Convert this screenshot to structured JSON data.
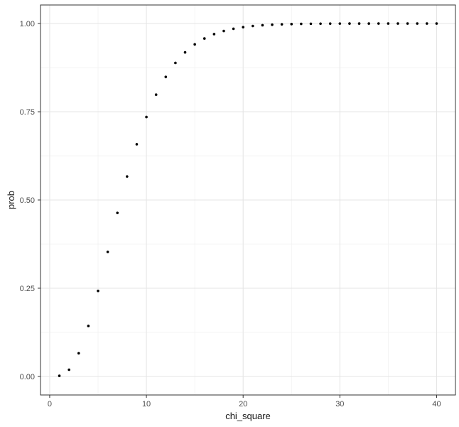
{
  "chart_data": {
    "type": "scatter",
    "title": "",
    "xlabel": "chi_square",
    "ylabel": "prob",
    "x": [
      1,
      2,
      3,
      4,
      5,
      6,
      7,
      8,
      9,
      10,
      11,
      12,
      13,
      14,
      15,
      16,
      17,
      18,
      19,
      20,
      21,
      22,
      23,
      24,
      25,
      26,
      27,
      28,
      29,
      30,
      31,
      32,
      33,
      34,
      35,
      36,
      37,
      38,
      39,
      40
    ],
    "y": [
      0.0018,
      0.019,
      0.0656,
      0.1429,
      0.2424,
      0.3528,
      0.4634,
      0.5665,
      0.6577,
      0.735,
      0.7983,
      0.8488,
      0.8882,
      0.9182,
      0.9409,
      0.9576,
      0.9699,
      0.9788,
      0.9851,
      0.9897,
      0.9929,
      0.9951,
      0.9966,
      0.9977,
      0.9984,
      0.999,
      0.9993,
      0.9995,
      0.9997,
      0.9998,
      0.9999,
      0.9999,
      0.9999,
      1.0,
      1.0,
      1.0,
      1.0,
      1.0,
      1.0,
      1.0
    ],
    "xlim": [
      -0.95,
      41.95
    ],
    "ylim": [
      -0.0525,
      1.0525
    ],
    "x_major_ticks": [
      0,
      10,
      20,
      30,
      40
    ],
    "x_tick_labels": [
      "0",
      "10",
      "20",
      "30",
      "40"
    ],
    "x_minor_ticks": [
      5,
      15,
      25,
      35
    ],
    "y_major_ticks": [
      0,
      0.25,
      0.5,
      0.75,
      1
    ],
    "y_tick_labels": [
      "0.00",
      "0.25",
      "0.50",
      "0.75",
      "1.00"
    ],
    "y_minor_ticks": [
      0.125,
      0.375,
      0.625,
      0.875
    ],
    "grid": "major+minor",
    "legend": false,
    "point_radius": 1.8,
    "colors": {
      "background": "#FFFFFF",
      "panel_bg": "#FFFFFF",
      "panel_border": "#333333",
      "grid_major": "#E4E4E4",
      "grid_minor": "#F2F2F2",
      "point": "#000000",
      "tick_mark": "#333333",
      "tick_label": "#4D4D4D",
      "axis_title": "#1A1A1A"
    }
  }
}
